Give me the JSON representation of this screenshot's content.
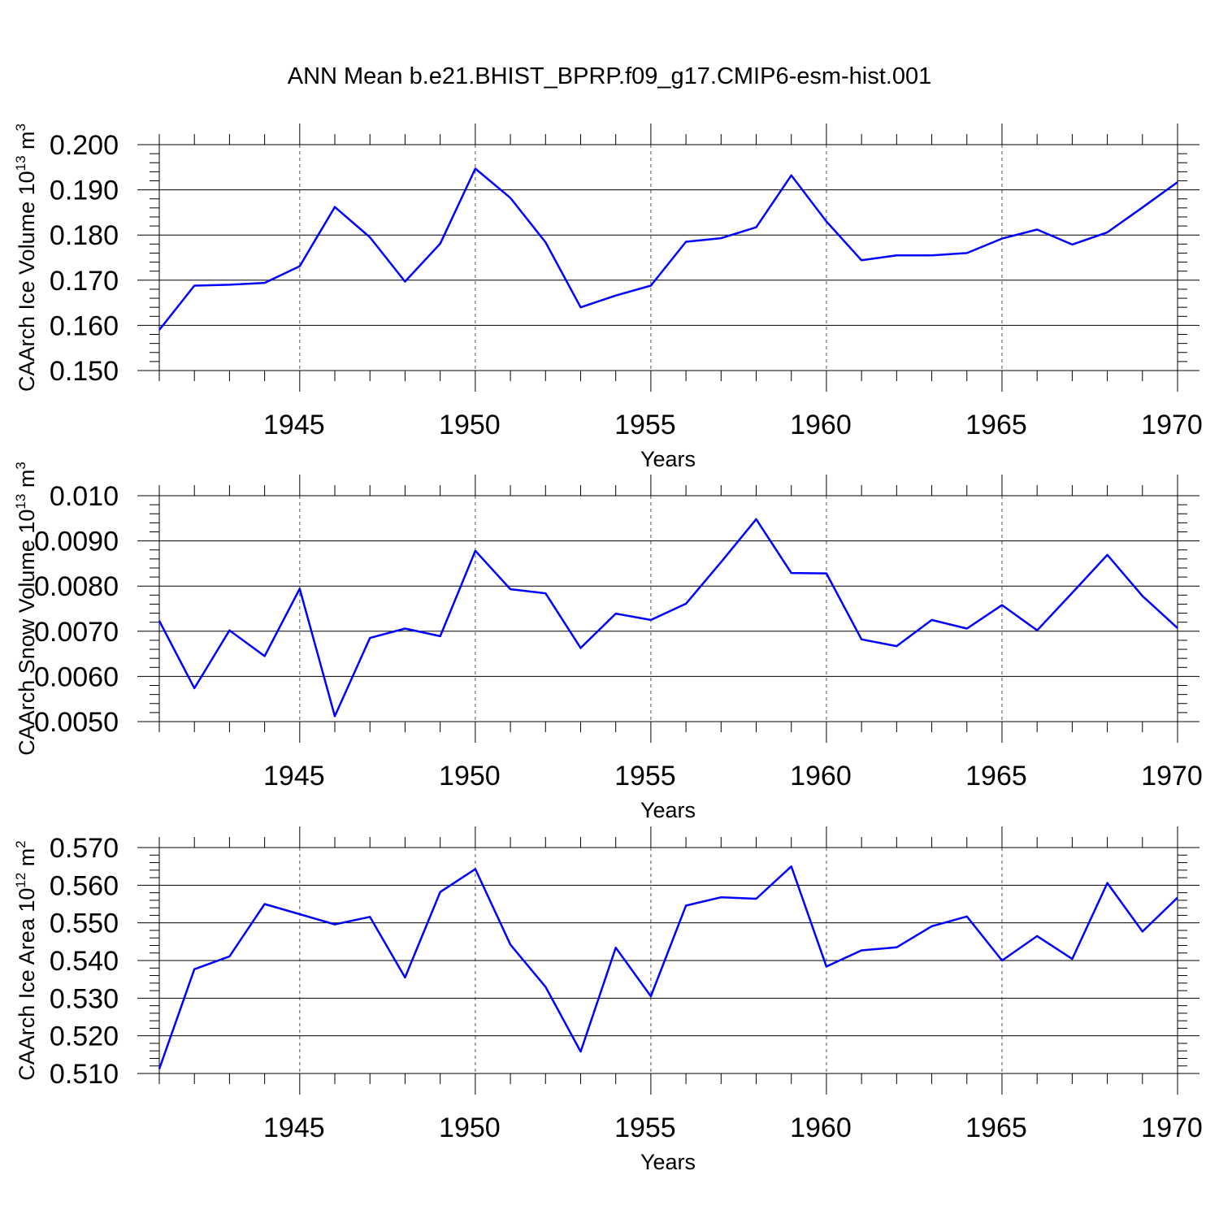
{
  "title": "ANN Mean b.e21.BHIST_BPRP.f09_g17.CMIP6-esm-hist.001",
  "chart_data": [
    {
      "type": "line",
      "title": "ANN Mean b.e21.BHIST_BPRP.f09_g17.CMIP6-esm-hist.001",
      "xlabel": "Years",
      "ylabel": "CAArch Ice Volume 10",
      "ylabel_sup": "13",
      "ylabel_unit": " m",
      "ylabel_unit_sup": "3",
      "xlim": [
        1941,
        1970
      ],
      "ylim": [
        0.15,
        0.2
      ],
      "x_ticks": [
        "1945",
        "1950",
        "1955",
        "1960",
        "1965",
        "1970"
      ],
      "y_ticks": [
        "0.150",
        "0.160",
        "0.170",
        "0.180",
        "0.190",
        "0.200"
      ],
      "grid": "vertical dashed at major x ticks",
      "line_color": "#0000ff",
      "x": [
        1941,
        1942,
        1943,
        1944,
        1945,
        1946,
        1947,
        1948,
        1949,
        1950,
        1951,
        1952,
        1953,
        1954,
        1955,
        1956,
        1957,
        1958,
        1959,
        1960,
        1961,
        1962,
        1963,
        1964,
        1965,
        1966,
        1967,
        1968,
        1969,
        1970
      ],
      "series": [
        {
          "values": [
            0.159,
            0.1688,
            0.169,
            0.1694,
            0.1731,
            0.1862,
            0.1795,
            0.1697,
            0.1781,
            0.1947,
            0.1882,
            0.1784,
            0.164,
            0.1666,
            0.1688,
            0.1785,
            0.1793,
            0.1817,
            0.1932,
            0.183,
            0.1744,
            0.1755,
            0.1755,
            0.176,
            0.1792,
            0.1812,
            0.1779,
            0.1806,
            0.1861,
            0.1917
          ]
        }
      ]
    },
    {
      "type": "line",
      "xlabel": "Years",
      "ylabel": "CAArch Snow Volume 10",
      "ylabel_sup": "13",
      "ylabel_unit": " m",
      "ylabel_unit_sup": "3",
      "xlim": [
        1941,
        1970
      ],
      "ylim": [
        0.005,
        0.01
      ],
      "x_ticks": [
        "1945",
        "1950",
        "1955",
        "1960",
        "1965",
        "1970"
      ],
      "y_ticks": [
        "0.0050",
        "0.0060",
        "0.0070",
        "0.0080",
        "0.0090",
        "0.010"
      ],
      "grid": "vertical dashed at major x ticks",
      "line_color": "#0000ff",
      "x": [
        1941,
        1942,
        1943,
        1944,
        1945,
        1946,
        1947,
        1948,
        1949,
        1950,
        1951,
        1952,
        1953,
        1954,
        1955,
        1956,
        1957,
        1958,
        1959,
        1960,
        1961,
        1962,
        1963,
        1964,
        1965,
        1966,
        1967,
        1968,
        1969,
        1970
      ],
      "series": [
        {
          "values": [
            0.00723,
            0.00574,
            0.00702,
            0.00645,
            0.00794,
            0.00512,
            0.00685,
            0.00706,
            0.00689,
            0.00878,
            0.00793,
            0.00784,
            0.00663,
            0.00739,
            0.00725,
            0.00761,
            0.00853,
            0.00948,
            0.00829,
            0.00828,
            0.00682,
            0.00667,
            0.00725,
            0.00706,
            0.00758,
            0.00702,
            0.00785,
            0.00869,
            0.00778,
            0.00707
          ]
        }
      ]
    },
    {
      "type": "line",
      "xlabel": "Years",
      "ylabel": "CAArch Ice Area 10",
      "ylabel_sup": "12",
      "ylabel_unit": " m",
      "ylabel_unit_sup": "2",
      "xlim": [
        1941,
        1970
      ],
      "ylim": [
        0.51,
        0.57
      ],
      "x_ticks": [
        "1945",
        "1950",
        "1955",
        "1960",
        "1965",
        "1970"
      ],
      "y_ticks": [
        "0.510",
        "0.520",
        "0.530",
        "0.540",
        "0.550",
        "0.560",
        "0.570"
      ],
      "grid": "vertical dashed at major x ticks",
      "line_color": "#0000ff",
      "x": [
        1941,
        1942,
        1943,
        1944,
        1945,
        1946,
        1947,
        1948,
        1949,
        1950,
        1951,
        1952,
        1953,
        1954,
        1955,
        1956,
        1957,
        1958,
        1959,
        1960,
        1961,
        1962,
        1963,
        1964,
        1965,
        1966,
        1967,
        1968,
        1969,
        1970
      ],
      "series": [
        {
          "values": [
            0.5112,
            0.5377,
            0.5411,
            0.555,
            0.5523,
            0.5496,
            0.5516,
            0.5355,
            0.5582,
            0.5643,
            0.5442,
            0.533,
            0.5158,
            0.5434,
            0.5305,
            0.5546,
            0.5568,
            0.5564,
            0.565,
            0.5384,
            0.5427,
            0.5435,
            0.5491,
            0.5517,
            0.54,
            0.5465,
            0.5404,
            0.5606,
            0.5477,
            0.5567
          ]
        }
      ]
    }
  ]
}
